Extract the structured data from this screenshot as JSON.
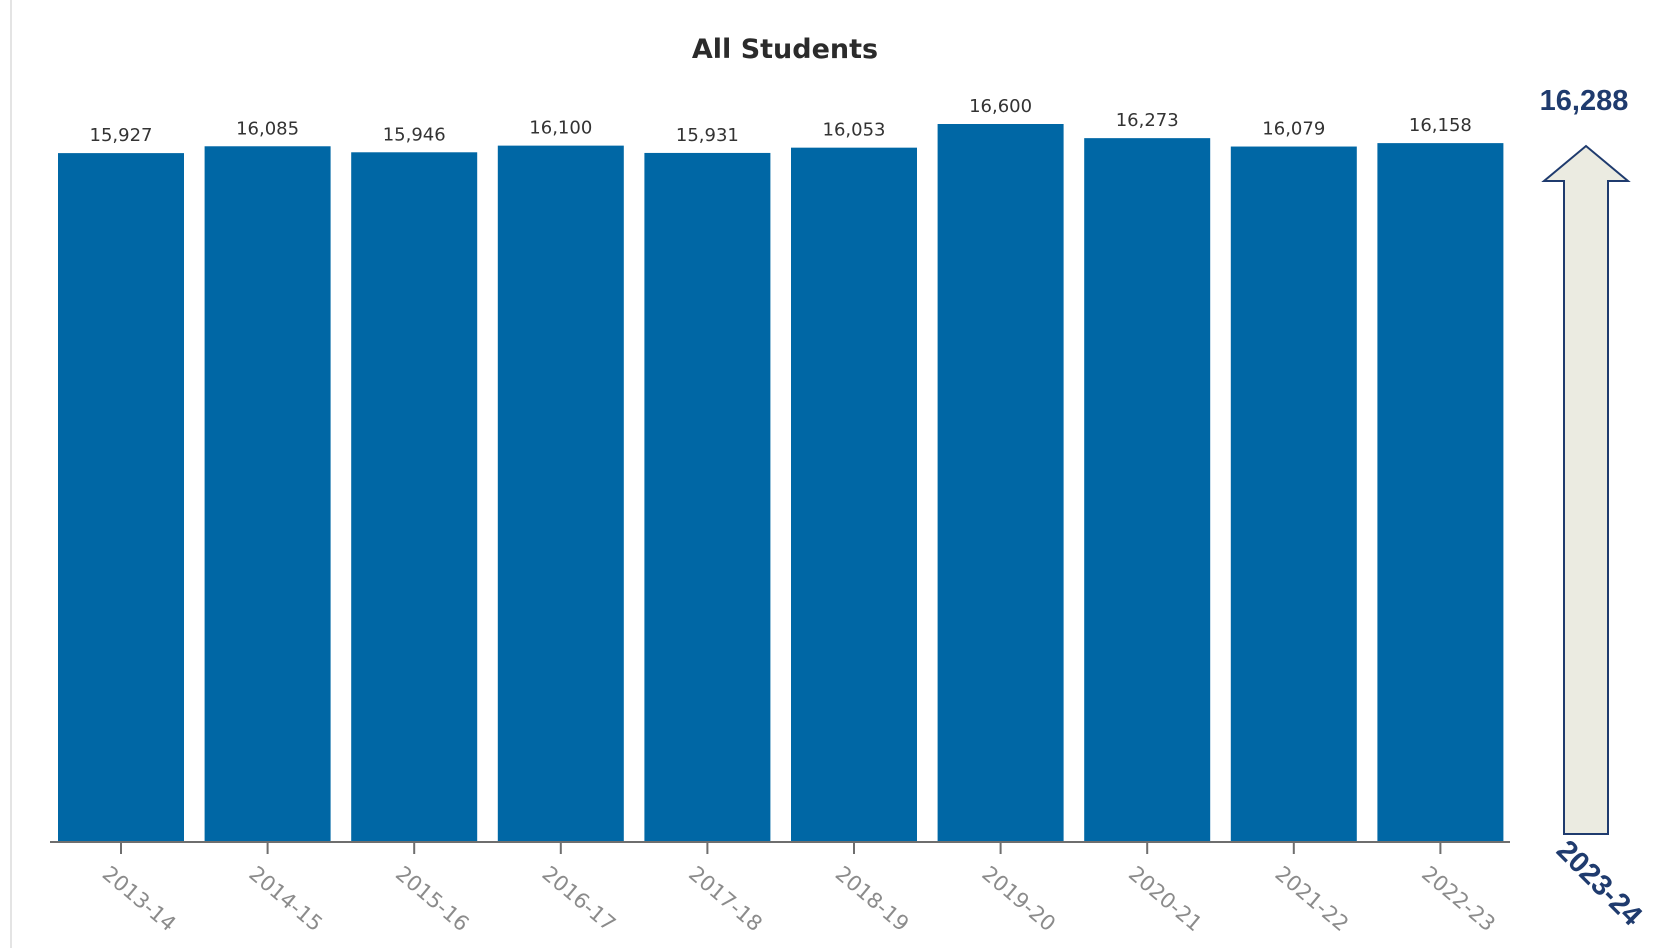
{
  "chart_data": {
    "type": "bar",
    "title": "All Students",
    "categories": [
      "2013-14",
      "2014-15",
      "2015-16",
      "2016-17",
      "2017-18",
      "2018-19",
      "2019-20",
      "2020-21",
      "2021-22",
      "2022-23"
    ],
    "values": [
      15927,
      16085,
      15946,
      16100,
      15931,
      16053,
      16600,
      16273,
      16079,
      16158
    ],
    "value_labels": [
      "15,927",
      "16,085",
      "15,946",
      "16,100",
      "15,931",
      "16,053",
      "16,600",
      "16,273",
      "16,079",
      "16,158"
    ],
    "ylim": [
      0,
      16600
    ],
    "grid": false,
    "bar_color": "#0067a5",
    "projection": {
      "year": "2023-24",
      "value": 16288,
      "value_label": "16,288",
      "arrow_fill": "#ebebe1",
      "arrow_stroke": "#1f3b6e",
      "text_color": "#1f3b6e"
    }
  }
}
